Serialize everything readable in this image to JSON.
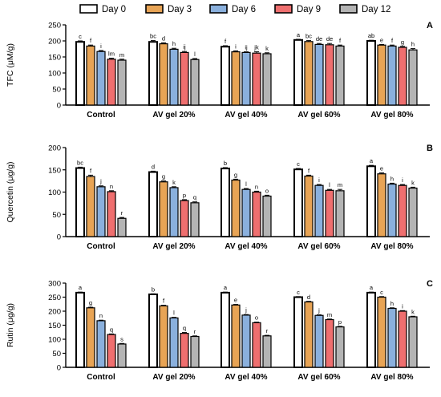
{
  "legend": {
    "placement": "top",
    "items": [
      {
        "label": "Day 0",
        "color": "#ffffff"
      },
      {
        "label": "Day 3",
        "color": "#e8a455"
      },
      {
        "label": "Day 6",
        "color": "#8ab0dd"
      },
      {
        "label": "Day 9",
        "color": "#ef6f6f"
      },
      {
        "label": "Day 12",
        "color": "#b4b4b4"
      }
    ]
  },
  "chart_data": [
    {
      "type": "bar",
      "panel_label": "A",
      "ylabel": "TFC (μM/g)",
      "ylim": [
        0,
        250
      ],
      "yticks": [
        0,
        50,
        100,
        150,
        200,
        250
      ],
      "categories": [
        "Control",
        "AV gel 20%",
        "AV gel 40%",
        "AV gel 60%",
        "AV gel 80%"
      ],
      "series": [
        {
          "name": "Day 0",
          "values": [
            197,
            197,
            182,
            203,
            200
          ]
        },
        {
          "name": "Day 3",
          "values": [
            184,
            191,
            166,
            198,
            187
          ]
        },
        {
          "name": "Day 6",
          "values": [
            167,
            174,
            164,
            189,
            184
          ]
        },
        {
          "name": "Day 9",
          "values": [
            143,
            164,
            162,
            188,
            180
          ]
        },
        {
          "name": "Day 12",
          "values": [
            140,
            142,
            160,
            184,
            172
          ]
        }
      ],
      "errors": [
        [
          3,
          3,
          3,
          3,
          3
        ],
        [
          4,
          3,
          3,
          3,
          3
        ],
        [
          3,
          3,
          2,
          4,
          3
        ],
        [
          2,
          3,
          3,
          4,
          3
        ],
        [
          2,
          2,
          3,
          3,
          4
        ]
      ],
      "letters": [
        [
          "c",
          "f",
          "i",
          "lm",
          "m"
        ],
        [
          "bc",
          "d",
          "h",
          "ij",
          "l"
        ],
        [
          "f",
          "i",
          "ij",
          "jk",
          "k"
        ],
        [
          "a",
          "bc",
          "de",
          "de",
          "f"
        ],
        [
          "ab",
          "e",
          "f",
          "g",
          "h"
        ]
      ]
    },
    {
      "type": "bar",
      "panel_label": "B",
      "ylabel": "Quercetin (μg/g)",
      "ylim": [
        0,
        200
      ],
      "yticks": [
        0,
        50,
        100,
        150,
        200
      ],
      "categories": [
        "Control",
        "AV gel 20%",
        "AV gel 40%",
        "AV gel 60%",
        "AV gel 80%"
      ],
      "series": [
        {
          "name": "Day 0",
          "values": [
            154,
            145,
            153,
            151,
            158
          ]
        },
        {
          "name": "Day 3",
          "values": [
            135,
            123,
            127,
            136,
            141
          ]
        },
        {
          "name": "Day 6",
          "values": [
            112,
            110,
            106,
            115,
            118
          ]
        },
        {
          "name": "Day 9",
          "values": [
            101,
            81,
            100,
            104,
            115
          ]
        },
        {
          "name": "Day 12",
          "values": [
            41,
            76,
            91,
            103,
            109
          ]
        }
      ],
      "errors": [
        [
          2,
          3,
          2,
          2,
          2
        ],
        [
          2,
          2,
          2,
          2,
          2
        ],
        [
          2,
          2,
          2,
          2,
          2
        ],
        [
          2,
          2,
          2,
          2,
          3
        ],
        [
          2,
          2,
          2,
          2,
          2
        ]
      ],
      "letters": [
        [
          "bc",
          "f",
          "j",
          "n",
          "r"
        ],
        [
          "d",
          "g",
          "k",
          "p",
          "q"
        ],
        [
          "b",
          "g",
          "l",
          "n",
          "o"
        ],
        [
          "c",
          "f",
          "i",
          "l",
          "m"
        ],
        [
          "a",
          "e",
          "h",
          "i",
          "k"
        ]
      ]
    },
    {
      "type": "bar",
      "panel_label": "C",
      "ylabel": "Rutin (μg/g)",
      "ylim": [
        0,
        300
      ],
      "yticks": [
        0,
        50,
        100,
        150,
        200,
        250,
        300
      ],
      "categories": [
        "Control",
        "AV gel 20%",
        "AV gel 40%",
        "AV gel 60%",
        "AV gel 80%"
      ],
      "series": [
        {
          "name": "Day 0",
          "values": [
            266,
            260,
            266,
            250,
            266
          ]
        },
        {
          "name": "Day 3",
          "values": [
            212,
            219,
            222,
            233,
            250
          ]
        },
        {
          "name": "Day 6",
          "values": [
            166,
            176,
            186,
            185,
            210
          ]
        },
        {
          "name": "Day 9",
          "values": [
            117,
            121,
            159,
            170,
            200
          ]
        },
        {
          "name": "Day 12",
          "values": [
            83,
            110,
            112,
            144,
            180
          ]
        }
      ],
      "errors": [
        [
          2,
          2,
          2,
          2,
          2
        ],
        [
          2,
          2,
          2,
          3,
          2
        ],
        [
          2,
          2,
          2,
          2,
          2
        ],
        [
          2,
          2,
          2,
          2,
          2
        ],
        [
          2,
          2,
          2,
          2,
          2
        ]
      ],
      "letters": [
        [
          "a",
          "g",
          "n",
          "q",
          "s"
        ],
        [
          "b",
          "f",
          "l",
          "q",
          "r"
        ],
        [
          "a",
          "e",
          "j",
          "o",
          "r"
        ],
        [
          "c",
          "d",
          "j",
          "m",
          "p"
        ],
        [
          "a",
          "c",
          "h",
          "i",
          "k"
        ]
      ]
    }
  ]
}
